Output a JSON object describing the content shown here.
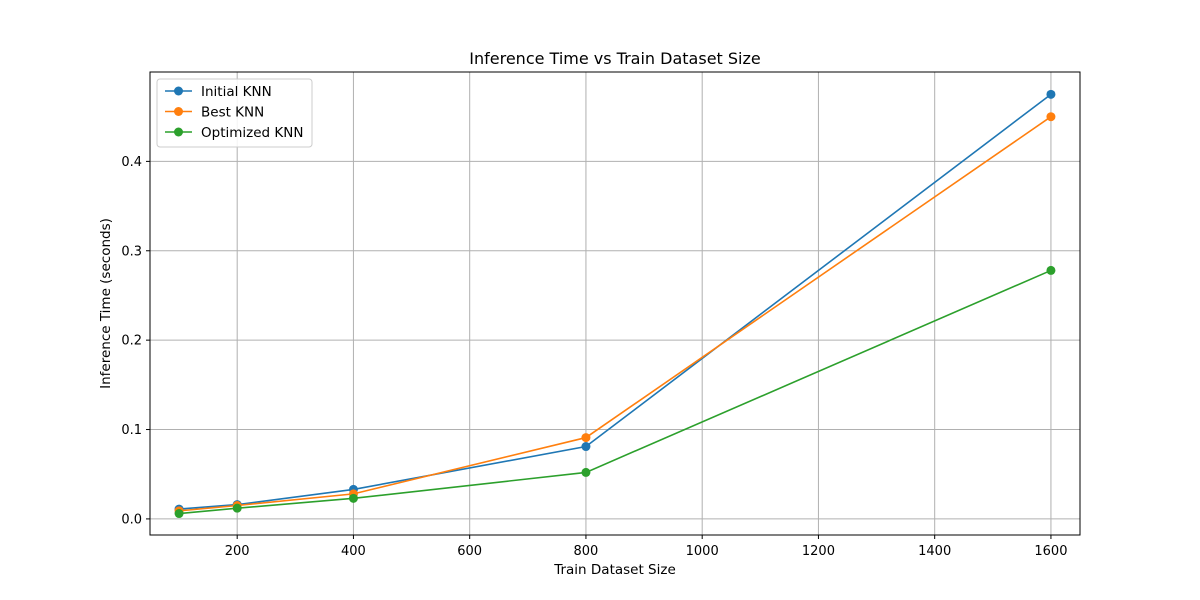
{
  "chart_data": {
    "type": "line",
    "title": "Inference Time vs Train Dataset Size",
    "xlabel": "Train Dataset Size",
    "ylabel": "Inference Time (seconds)",
    "x": [
      100,
      200,
      400,
      800,
      1600
    ],
    "xlim": [
      50,
      1650
    ],
    "ylim": [
      -0.018,
      0.5
    ],
    "xticks": [
      200,
      400,
      600,
      800,
      1000,
      1200,
      1400,
      1600
    ],
    "yticks": [
      0.0,
      0.1,
      0.2,
      0.3,
      0.4
    ],
    "ytick_labels": [
      "0.0",
      "0.1",
      "0.2",
      "0.3",
      "0.4"
    ],
    "grid": true,
    "legend_position": "top-left",
    "series": [
      {
        "name": "Initial KNN",
        "color": "#1f77b4",
        "values": [
          0.011,
          0.016,
          0.033,
          0.081,
          0.475
        ]
      },
      {
        "name": "Best KNN",
        "color": "#ff7f0e",
        "values": [
          0.009,
          0.015,
          0.028,
          0.091,
          0.45
        ]
      },
      {
        "name": "Optimized KNN",
        "color": "#2ca02c",
        "values": [
          0.006,
          0.012,
          0.023,
          0.052,
          0.278
        ]
      }
    ]
  }
}
